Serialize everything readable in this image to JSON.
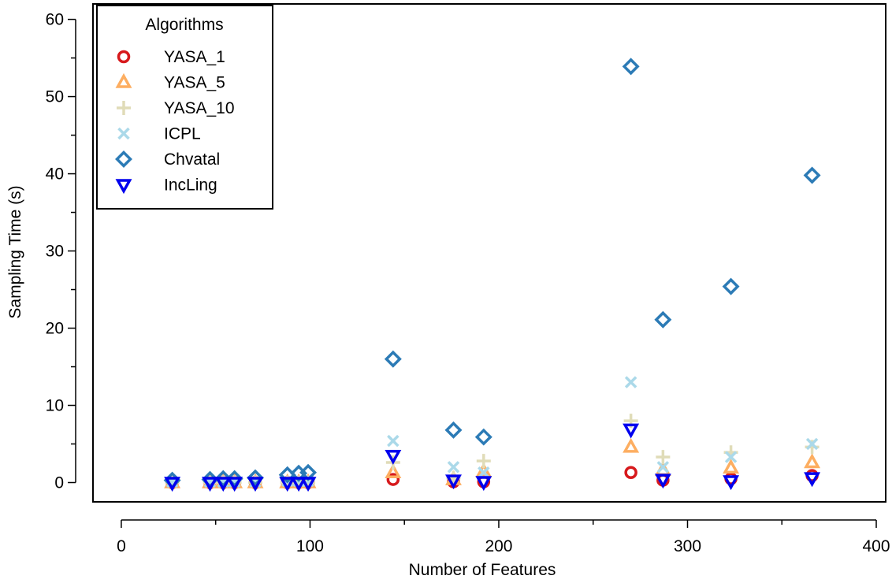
{
  "chart_data": {
    "type": "scatter",
    "title": "",
    "xlabel": "Number of Features",
    "ylabel": "Sampling Time (s)",
    "xlim": [
      -15,
      405
    ],
    "ylim": [
      -2.5,
      62
    ],
    "x_ticks": [
      0,
      100,
      200,
      300,
      400
    ],
    "y_ticks": [
      0,
      10,
      20,
      30,
      40,
      50,
      60
    ],
    "grid": false,
    "legend": {
      "title": "Algorithms",
      "placement": "top-left"
    },
    "series": [
      {
        "name": "YASA_1",
        "marker": "circle",
        "color": "#d7191c",
        "points": [
          [
            27,
            0
          ],
          [
            47,
            0
          ],
          [
            54,
            0
          ],
          [
            60,
            0
          ],
          [
            71,
            0
          ],
          [
            88,
            0
          ],
          [
            94,
            0
          ],
          [
            99,
            0
          ],
          [
            144,
            0.4
          ],
          [
            176,
            0.1
          ],
          [
            192,
            0.1
          ],
          [
            270,
            1.3
          ],
          [
            287,
            0.3
          ],
          [
            323,
            0.5
          ],
          [
            366,
            0.9
          ]
        ]
      },
      {
        "name": "YASA_5",
        "marker": "triangle-up",
        "color": "#fdae61",
        "points": [
          [
            27,
            0
          ],
          [
            47,
            0
          ],
          [
            54,
            0
          ],
          [
            60,
            0
          ],
          [
            71,
            0
          ],
          [
            88,
            0
          ],
          [
            94,
            0
          ],
          [
            99,
            0
          ],
          [
            144,
            1.3
          ],
          [
            176,
            0.4
          ],
          [
            192,
            1.4
          ],
          [
            270,
            4.6
          ],
          [
            287,
            1.6
          ],
          [
            323,
            1.9
          ],
          [
            366,
            2.6
          ]
        ]
      },
      {
        "name": "YASA_10",
        "marker": "plus",
        "color": "#e0dcb8",
        "points": [
          [
            27,
            0
          ],
          [
            47,
            0
          ],
          [
            54,
            0
          ],
          [
            60,
            0
          ],
          [
            71,
            0
          ],
          [
            88,
            0
          ],
          [
            94,
            0
          ],
          [
            99,
            0
          ],
          [
            144,
            2.6
          ],
          [
            176,
            0.6
          ],
          [
            192,
            2.8
          ],
          [
            270,
            8.0
          ],
          [
            287,
            3.3
          ],
          [
            323,
            3.9
          ],
          [
            366,
            4.6
          ]
        ]
      },
      {
        "name": "ICPL",
        "marker": "x",
        "color": "#abd9e9",
        "points": [
          [
            27,
            0.1
          ],
          [
            47,
            0.1
          ],
          [
            54,
            0.1
          ],
          [
            60,
            0.1
          ],
          [
            71,
            0.1
          ],
          [
            88,
            0.2
          ],
          [
            94,
            0.2
          ],
          [
            99,
            0.2
          ],
          [
            144,
            5.4
          ],
          [
            176,
            2.0
          ],
          [
            192,
            1.3
          ],
          [
            270,
            13.0
          ],
          [
            287,
            2.0
          ],
          [
            323,
            3.3
          ],
          [
            366,
            5.0
          ]
        ]
      },
      {
        "name": "Chvatal",
        "marker": "diamond",
        "color": "#2c7bb6",
        "points": [
          [
            27,
            0.3
          ],
          [
            47,
            0.4
          ],
          [
            54,
            0.5
          ],
          [
            60,
            0.5
          ],
          [
            71,
            0.6
          ],
          [
            88,
            1.0
          ],
          [
            94,
            1.2
          ],
          [
            99,
            1.3
          ],
          [
            144,
            16.0
          ],
          [
            176,
            6.8
          ],
          [
            192,
            5.9
          ],
          [
            270,
            53.9
          ],
          [
            287,
            21.1
          ],
          [
            323,
            25.4
          ],
          [
            366,
            39.8
          ]
        ]
      },
      {
        "name": "IncLing",
        "marker": "triangle-down",
        "color": "#0000ee",
        "points": [
          [
            27,
            0
          ],
          [
            47,
            0
          ],
          [
            54,
            0
          ],
          [
            60,
            0
          ],
          [
            71,
            0
          ],
          [
            88,
            0
          ],
          [
            94,
            0
          ],
          [
            99,
            0
          ],
          [
            144,
            3.5
          ],
          [
            176,
            0.3
          ],
          [
            192,
            0.1
          ],
          [
            270,
            6.9
          ],
          [
            287,
            0.4
          ],
          [
            323,
            0.2
          ],
          [
            366,
            0.6
          ]
        ]
      }
    ]
  }
}
